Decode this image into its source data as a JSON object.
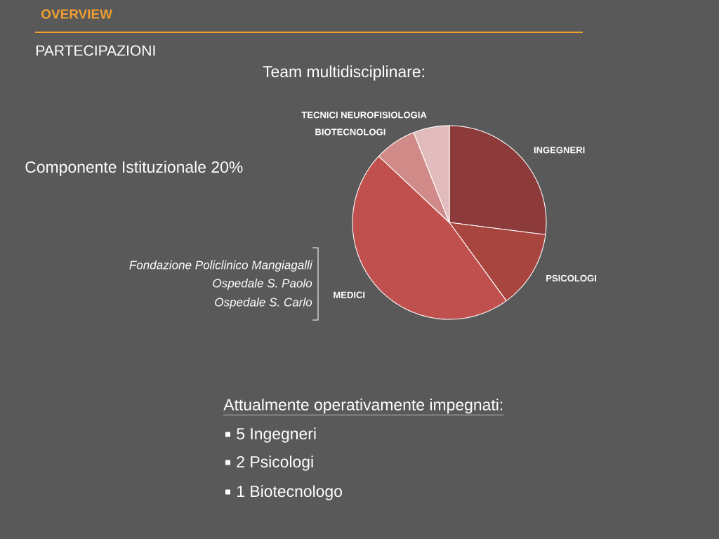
{
  "chart_data": {
    "type": "pie",
    "title": "Team multidisciplinare:",
    "categories": [
      "INGEGNERI",
      "PSICOLOGI",
      "MEDICI",
      "BIOTECNOLOGI",
      "TECNICI NEUROFISIOLOGIA"
    ],
    "values": [
      27,
      13,
      47,
      7,
      6
    ],
    "colors": [
      "#8c3a3a",
      "#a8453f",
      "#c0504d",
      "#d08a88",
      "#e2bcbc"
    ],
    "annotations": [
      "OVERVIEW",
      "PARTECIPAZIONI",
      "Componente Istituzionale 20%",
      "Fondazione Policlinico Mangiagalli",
      "Ospedale S. Paolo",
      "Ospedale S. Carlo",
      "Attualmente operativamente impegnati:",
      "5 Ingegneri",
      "2 Psicologi",
      "1 Biotecnologo"
    ]
  }
}
